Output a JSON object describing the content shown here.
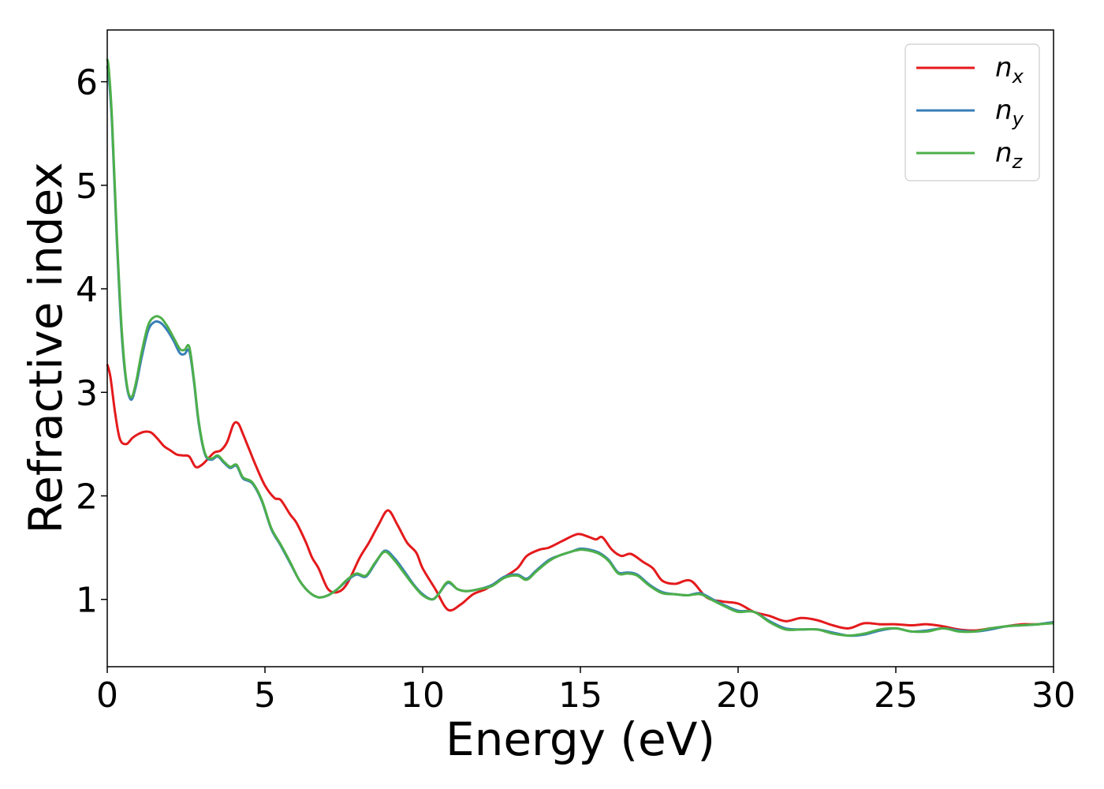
{
  "colors": {
    "nx": "#e41a1c",
    "ny": "#377eb8",
    "nz": "#4daf4a"
  },
  "chart_data": {
    "type": "line",
    "title": "",
    "xlabel": "Energy (eV)",
    "ylabel": "Refractive index",
    "xlim": [
      0,
      30
    ],
    "ylim": [
      0.35,
      6.5
    ],
    "xticks": [
      0,
      5,
      10,
      15,
      20,
      25,
      30
    ],
    "yticks": [
      1,
      2,
      3,
      4,
      5,
      6
    ],
    "grid": false,
    "legend_position": "top-right",
    "series": [
      {
        "name": "n_x",
        "label_main": "n",
        "label_sub": "x",
        "color": "#e41a1c",
        "x": [
          0,
          0.1,
          0.25,
          0.4,
          0.6,
          0.8,
          1.0,
          1.2,
          1.4,
          1.6,
          1.8,
          2.0,
          2.2,
          2.4,
          2.6,
          2.8,
          3.0,
          3.2,
          3.4,
          3.6,
          3.8,
          4.0,
          4.15,
          4.3,
          4.5,
          4.7,
          5.0,
          5.3,
          5.5,
          5.8,
          6.0,
          6.3,
          6.5,
          6.7,
          7.0,
          7.3,
          7.6,
          8.0,
          8.3,
          8.6,
          8.9,
          9.2,
          9.5,
          9.8,
          10.0,
          10.4,
          10.8,
          11.2,
          11.6,
          12.0,
          12.5,
          13.0,
          13.3,
          13.7,
          14.0,
          14.4,
          14.8,
          15.0,
          15.3,
          15.5,
          15.7,
          16.0,
          16.3,
          16.6,
          17.0,
          17.3,
          17.6,
          18.0,
          18.5,
          19.0,
          19.5,
          20.0,
          20.5,
          21.0,
          21.5,
          22.0,
          22.5,
          23.0,
          23.5,
          24.0,
          24.5,
          25.0,
          25.5,
          26.0,
          26.5,
          27.0,
          27.5,
          28.0,
          28.5,
          29.0,
          29.5,
          30.0
        ],
        "y": [
          3.27,
          3.15,
          2.8,
          2.55,
          2.5,
          2.56,
          2.6,
          2.62,
          2.61,
          2.55,
          2.48,
          2.44,
          2.4,
          2.39,
          2.38,
          2.28,
          2.3,
          2.36,
          2.42,
          2.44,
          2.52,
          2.69,
          2.7,
          2.6,
          2.45,
          2.3,
          2.1,
          1.98,
          1.96,
          1.82,
          1.74,
          1.55,
          1.4,
          1.3,
          1.1,
          1.07,
          1.15,
          1.4,
          1.55,
          1.72,
          1.86,
          1.72,
          1.55,
          1.45,
          1.3,
          1.1,
          0.9,
          0.95,
          1.05,
          1.1,
          1.2,
          1.3,
          1.42,
          1.48,
          1.5,
          1.56,
          1.62,
          1.63,
          1.6,
          1.58,
          1.6,
          1.48,
          1.42,
          1.44,
          1.36,
          1.3,
          1.18,
          1.15,
          1.18,
          1.02,
          0.98,
          0.96,
          0.88,
          0.84,
          0.79,
          0.82,
          0.8,
          0.75,
          0.72,
          0.77,
          0.76,
          0.76,
          0.75,
          0.76,
          0.74,
          0.71,
          0.7,
          0.72,
          0.74,
          0.76,
          0.76,
          0.78
        ]
      },
      {
        "name": "n_y",
        "label_main": "n",
        "label_sub": "y",
        "color": "#377eb8",
        "x": [
          0,
          0.05,
          0.15,
          0.3,
          0.45,
          0.6,
          0.75,
          0.9,
          1.1,
          1.3,
          1.5,
          1.7,
          1.9,
          2.1,
          2.3,
          2.45,
          2.6,
          2.75,
          2.9,
          3.1,
          3.3,
          3.5,
          3.7,
          3.9,
          4.1,
          4.3,
          4.6,
          4.9,
          5.2,
          5.5,
          5.8,
          6.1,
          6.4,
          6.7,
          7.0,
          7.3,
          7.6,
          7.9,
          8.2,
          8.5,
          8.8,
          9.1,
          9.4,
          9.7,
          10.0,
          10.3,
          10.5,
          10.8,
          11.1,
          11.4,
          11.8,
          12.2,
          12.6,
          13.0,
          13.3,
          13.6,
          14.0,
          14.3,
          14.7,
          15.0,
          15.3,
          15.6,
          15.9,
          16.2,
          16.5,
          16.8,
          17.2,
          17.6,
          18.0,
          18.4,
          18.8,
          19.2,
          19.6,
          20.0,
          20.5,
          21.0,
          21.5,
          22.0,
          22.5,
          23.0,
          23.5,
          24.0,
          24.5,
          25.0,
          25.5,
          26.0,
          26.5,
          27.0,
          27.5,
          28.0,
          28.5,
          29.0,
          29.5,
          30.0
        ],
        "y": [
          6.15,
          6.05,
          5.6,
          4.5,
          3.6,
          3.1,
          2.93,
          3.05,
          3.35,
          3.6,
          3.68,
          3.67,
          3.6,
          3.5,
          3.38,
          3.37,
          3.4,
          3.1,
          2.7,
          2.4,
          2.35,
          2.38,
          2.32,
          2.27,
          2.29,
          2.17,
          2.12,
          1.95,
          1.68,
          1.52,
          1.35,
          1.18,
          1.07,
          1.02,
          1.04,
          1.1,
          1.18,
          1.24,
          1.22,
          1.35,
          1.47,
          1.4,
          1.28,
          1.15,
          1.05,
          1.0,
          1.05,
          1.16,
          1.1,
          1.08,
          1.1,
          1.14,
          1.22,
          1.24,
          1.2,
          1.28,
          1.38,
          1.42,
          1.46,
          1.49,
          1.48,
          1.45,
          1.38,
          1.26,
          1.26,
          1.24,
          1.14,
          1.07,
          1.05,
          1.04,
          1.06,
          1.0,
          0.94,
          0.89,
          0.88,
          0.79,
          0.72,
          0.71,
          0.71,
          0.68,
          0.65,
          0.66,
          0.7,
          0.72,
          0.69,
          0.7,
          0.72,
          0.7,
          0.69,
          0.71,
          0.74,
          0.75,
          0.76,
          0.78
        ]
      },
      {
        "name": "n_z",
        "label_main": "n",
        "label_sub": "z",
        "color": "#4daf4a",
        "x": [
          0,
          0.05,
          0.15,
          0.3,
          0.45,
          0.6,
          0.75,
          0.9,
          1.1,
          1.3,
          1.5,
          1.7,
          1.9,
          2.1,
          2.3,
          2.45,
          2.6,
          2.75,
          2.9,
          3.1,
          3.3,
          3.5,
          3.7,
          3.9,
          4.1,
          4.3,
          4.6,
          4.9,
          5.2,
          5.5,
          5.8,
          6.1,
          6.4,
          6.7,
          7.0,
          7.3,
          7.6,
          7.9,
          8.2,
          8.5,
          8.8,
          9.1,
          9.4,
          9.7,
          10.0,
          10.3,
          10.5,
          10.8,
          11.1,
          11.4,
          11.8,
          12.2,
          12.6,
          13.0,
          13.3,
          13.6,
          14.0,
          14.3,
          14.7,
          15.0,
          15.3,
          15.6,
          15.9,
          16.2,
          16.5,
          16.8,
          17.2,
          17.6,
          18.0,
          18.4,
          18.8,
          19.2,
          19.6,
          20.0,
          20.5,
          21.0,
          21.5,
          22.0,
          22.5,
          23.0,
          23.5,
          24.0,
          24.5,
          25.0,
          25.5,
          26.0,
          26.5,
          27.0,
          27.5,
          28.0,
          28.5,
          29.0,
          29.5,
          30.0
        ],
        "y": [
          6.22,
          6.12,
          5.65,
          4.55,
          3.65,
          3.12,
          2.95,
          3.08,
          3.4,
          3.65,
          3.73,
          3.72,
          3.64,
          3.53,
          3.42,
          3.41,
          3.44,
          3.12,
          2.72,
          2.41,
          2.36,
          2.39,
          2.33,
          2.28,
          2.3,
          2.18,
          2.13,
          1.96,
          1.69,
          1.53,
          1.36,
          1.18,
          1.07,
          1.02,
          1.04,
          1.1,
          1.19,
          1.25,
          1.23,
          1.36,
          1.46,
          1.38,
          1.26,
          1.14,
          1.04,
          1.0,
          1.05,
          1.17,
          1.1,
          1.08,
          1.1,
          1.13,
          1.21,
          1.23,
          1.19,
          1.27,
          1.37,
          1.42,
          1.46,
          1.48,
          1.47,
          1.44,
          1.37,
          1.25,
          1.25,
          1.23,
          1.13,
          1.06,
          1.05,
          1.04,
          1.05,
          0.99,
          0.93,
          0.88,
          0.88,
          0.78,
          0.71,
          0.71,
          0.71,
          0.67,
          0.65,
          0.67,
          0.71,
          0.72,
          0.69,
          0.69,
          0.72,
          0.69,
          0.69,
          0.72,
          0.74,
          0.75,
          0.76,
          0.77
        ]
      }
    ]
  }
}
